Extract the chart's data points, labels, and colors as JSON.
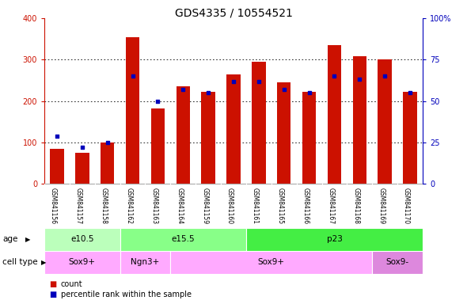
{
  "title": "GDS4335 / 10554521",
  "samples": [
    "GSM841156",
    "GSM841157",
    "GSM841158",
    "GSM841162",
    "GSM841163",
    "GSM841164",
    "GSM841159",
    "GSM841160",
    "GSM841161",
    "GSM841165",
    "GSM841166",
    "GSM841167",
    "GSM841168",
    "GSM841169",
    "GSM841170"
  ],
  "counts": [
    85,
    75,
    100,
    355,
    182,
    235,
    222,
    265,
    295,
    245,
    222,
    335,
    308,
    300,
    222
  ],
  "percentiles": [
    29,
    22,
    25,
    65,
    50,
    57,
    55,
    62,
    62,
    57,
    55,
    65,
    63,
    65,
    55
  ],
  "ylim_left": [
    0,
    400
  ],
  "ylim_right": [
    0,
    100
  ],
  "yticks_left": [
    0,
    100,
    200,
    300,
    400
  ],
  "yticks_right": [
    0,
    25,
    50,
    75,
    100
  ],
  "ytick_labels_right": [
    "0",
    "25",
    "50",
    "75",
    "100%"
  ],
  "bar_color": "#cc1100",
  "marker_color": "#0000bb",
  "age_groups": [
    {
      "label": "e10.5",
      "start": 0,
      "end": 3,
      "color": "#bbffbb"
    },
    {
      "label": "e15.5",
      "start": 3,
      "end": 8,
      "color": "#88ff88"
    },
    {
      "label": "p23",
      "start": 8,
      "end": 15,
      "color": "#44ee44"
    }
  ],
  "cell_type_groups": [
    {
      "label": "Sox9+",
      "start": 0,
      "end": 3,
      "color": "#ffaaff"
    },
    {
      "label": "Ngn3+",
      "start": 3,
      "end": 5,
      "color": "#ffaaff"
    },
    {
      "label": "Sox9+",
      "start": 5,
      "end": 13,
      "color": "#ffaaff"
    },
    {
      "label": "Sox9-",
      "start": 13,
      "end": 15,
      "color": "#dd88dd"
    }
  ],
  "bar_width": 0.55,
  "tick_color_left": "#cc1100",
  "tick_color_right": "#0000bb",
  "title_fontsize": 10,
  "tick_fontsize": 7,
  "label_fontsize": 7.5,
  "legend_fontsize": 7
}
